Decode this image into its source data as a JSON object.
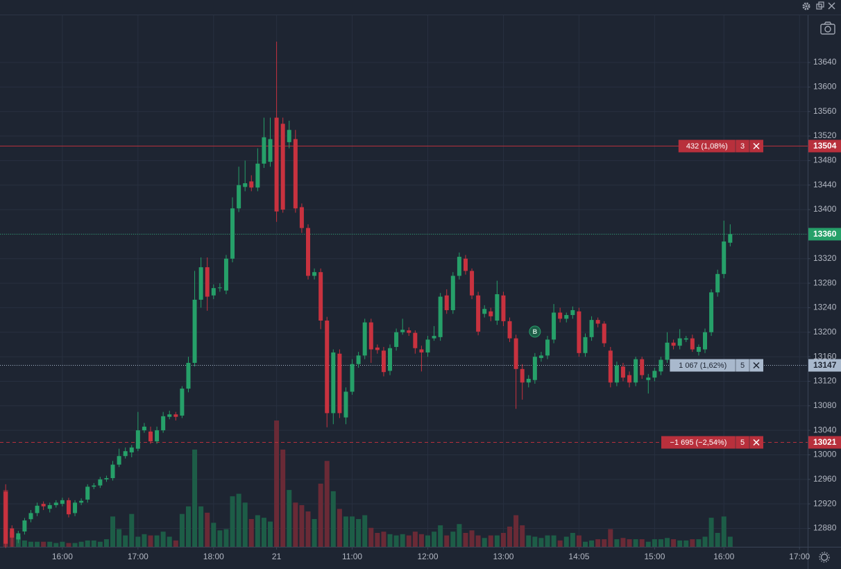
{
  "chart_data": {
    "type": "candlestick",
    "up_color": "#26a069",
    "down_color": "#c8323f",
    "volume_up_color": "#1d5d47",
    "volume_down_color": "#6a2a36",
    "grid": true,
    "xlim": [
      -0.9,
      127.3
    ],
    "xticks": [
      {
        "value": 9,
        "label": "16:00"
      },
      {
        "value": 21,
        "label": "17:00"
      },
      {
        "value": 33,
        "label": "18:00"
      },
      {
        "value": 43,
        "label": "21"
      },
      {
        "value": 55,
        "label": "11:00"
      },
      {
        "value": 67,
        "label": "12:00"
      },
      {
        "value": 79,
        "label": "13:00"
      },
      {
        "value": 91,
        "label": "14:05"
      },
      {
        "value": 103,
        "label": "15:00"
      },
      {
        "value": 114,
        "label": "16:00"
      },
      {
        "value": 126,
        "label": "17:00"
      }
    ],
    "ylim": [
      12850,
      13717
    ],
    "yticks": [
      12880,
      12920,
      12960,
      13000,
      13040,
      13080,
      13120,
      13160,
      13200,
      13240,
      13280,
      13320,
      13360,
      13400,
      13440,
      13480,
      13520,
      13560,
      13600,
      13640
    ],
    "open": [
      12940,
      12880,
      12862,
      12875,
      12895,
      12905,
      12920,
      12912,
      12918,
      12920,
      12926,
      12905,
      12922,
      12927,
      12948,
      12950,
      12960,
      12962,
      12984,
      12998,
      13004,
      13010,
      13040,
      13038,
      13022,
      13040,
      13062,
      13066,
      13064,
      13108,
      13150,
      13253,
      13306,
      13260,
      13272,
      13268,
      13320,
      13402,
      13437,
      13446,
      13436,
      13475,
      13478,
      13550,
      13540,
      13510,
      13515,
      13404,
      13370,
      13292,
      13298,
      13219,
      13068,
      13165,
      13061,
      13103,
      13148,
      13162,
      13216,
      13175,
      13170,
      13137,
      13176,
      13200,
      13203,
      13199,
      13172,
      13167,
      13190,
      13192,
      13260,
      13236,
      13292,
      13320,
      13300,
      13260,
      13230,
      13234,
      13219,
      13260,
      13218,
      13190,
      13140,
      13118,
      13122,
      13158,
      13162,
      13188,
      13232,
      13222,
      13228,
      13234,
      13166,
      13192,
      13220,
      13214,
      13170,
      13118,
      13144,
      13130,
      13118,
      13156,
      13122,
      13126,
      13136,
      13155,
      13183,
      13178,
      13188,
      13190,
      13168,
      13172,
      13200,
      13265,
      13295,
      13346
    ],
    "high": [
      12952,
      12885,
      12876,
      12897,
      12910,
      12922,
      12924,
      12922,
      12926,
      12930,
      12930,
      12926,
      12929,
      12952,
      12954,
      12964,
      12966,
      12990,
      13010,
      13012,
      13016,
      13070,
      13052,
      13046,
      13046,
      13070,
      13072,
      13070,
      13112,
      13160,
      13300,
      13322,
      13322,
      13278,
      13280,
      13326,
      13420,
      13470,
      13480,
      13456,
      13500,
      13550,
      13550,
      13674,
      13550,
      13545,
      13530,
      13410,
      13376,
      13304,
      13304,
      13225,
      13172,
      13172,
      13110,
      13156,
      13168,
      13222,
      13222,
      13180,
      13176,
      13180,
      13206,
      13222,
      13208,
      13203,
      13178,
      13194,
      13210,
      13264,
      13270,
      13298,
      13330,
      13326,
      13304,
      13266,
      13244,
      13240,
      13284,
      13266,
      13224,
      13196,
      13148,
      13130,
      13166,
      13168,
      13194,
      13246,
      13240,
      13232,
      13242,
      13240,
      13198,
      13226,
      13224,
      13218,
      13176,
      13152,
      13150,
      13136,
      13160,
      13160,
      13132,
      13142,
      13160,
      13200,
      13188,
      13205,
      13194,
      13196,
      13180,
      13206,
      13270,
      13302,
      13382,
      13376
    ],
    "low": [
      12848,
      12850,
      12856,
      12870,
      12890,
      12900,
      12910,
      12906,
      12914,
      12916,
      12898,
      12900,
      12918,
      12922,
      12944,
      12946,
      12956,
      12958,
      12980,
      12994,
      12996,
      13006,
      13036,
      13018,
      13018,
      13036,
      13058,
      13056,
      13060,
      13102,
      13144,
      13240,
      13235,
      13254,
      13266,
      13262,
      13314,
      13396,
      13430,
      13430,
      13430,
      13468,
      13470,
      13380,
      13395,
      13500,
      13395,
      13362,
      13286,
      13286,
      13205,
      13045,
      13050,
      13060,
      13050,
      13098,
      13142,
      13156,
      13150,
      13165,
      13128,
      13130,
      13170,
      13196,
      13194,
      13165,
      13136,
      13160,
      13186,
      13186,
      13230,
      13230,
      13286,
      13294,
      13254,
      13195,
      13224,
      13218,
      13212,
      13210,
      13184,
      13075,
      13090,
      13110,
      13116,
      13152,
      13156,
      13182,
      13216,
      13216,
      13222,
      13160,
      13160,
      13186,
      13208,
      13176,
      13110,
      13112,
      13120,
      13110,
      13112,
      13124,
      13100,
      13120,
      13130,
      13150,
      13172,
      13172,
      13184,
      13168,
      13162,
      13166,
      13194,
      13258,
      13288,
      13340
    ],
    "close": [
      12855,
      12865,
      12872,
      12893,
      12905,
      12917,
      12916,
      12918,
      12922,
      12926,
      12903,
      12922,
      12925,
      12948,
      12950,
      12960,
      12962,
      12984,
      12998,
      13006,
      13012,
      13040,
      13046,
      13022,
      13040,
      13063,
      13066,
      13062,
      13108,
      13150,
      13253,
      13306,
      13258,
      13272,
      13273,
      13320,
      13402,
      13440,
      13443,
      13436,
      13475,
      13518,
      13515,
      13397,
      13400,
      13530,
      13402,
      13370,
      13292,
      13298,
      13219,
      13068,
      13167,
      13068,
      13103,
      13148,
      13162,
      13216,
      13172,
      13171,
      13135,
      13174,
      13200,
      13204,
      13199,
      13174,
      13167,
      13188,
      13194,
      13258,
      13236,
      13292,
      13323,
      13300,
      13260,
      13201,
      13238,
      13226,
      13262,
      13218,
      13190,
      13140,
      13118,
      13124,
      13160,
      13162,
      13188,
      13232,
      13222,
      13228,
      13236,
      13166,
      13192,
      13220,
      13214,
      13182,
      13118,
      13146,
      13126,
      13118,
      13156,
      13130,
      13126,
      13137,
      13155,
      13183,
      13178,
      13190,
      13190,
      13172,
      13176,
      13200,
      13265,
      13295,
      13348,
      13360
    ],
    "volume": [
      45,
      12,
      8,
      5,
      4,
      4,
      4,
      4,
      3,
      4,
      3,
      3,
      4,
      5,
      5,
      4,
      6,
      24,
      14,
      9,
      26,
      8,
      10,
      9,
      9,
      12,
      8,
      5,
      26,
      32,
      77,
      32,
      27,
      19,
      13,
      14,
      40,
      42,
      35,
      22,
      25,
      23,
      20,
      100,
      77,
      45,
      35,
      33,
      28,
      22,
      50,
      68,
      44,
      30,
      24,
      24,
      22,
      25,
      15,
      11,
      12,
      10,
      9,
      10,
      9,
      12,
      10,
      9,
      12,
      17,
      9,
      12,
      18,
      11,
      13,
      9,
      7,
      9,
      9,
      11,
      16,
      25,
      17,
      9,
      8,
      7,
      9,
      9,
      5,
      8,
      11,
      9,
      4,
      5,
      6,
      6,
      14,
      6,
      7,
      6,
      6,
      6,
      4,
      6,
      6,
      7,
      6,
      5,
      5,
      6,
      6,
      8,
      23,
      11,
      24,
      8
    ],
    "price_lines": [
      {
        "value": 13504,
        "label": "432 (1,08%)",
        "count": 3,
        "color": "#b8303c",
        "style": "solid"
      },
      {
        "value": 13360,
        "color": "#26a069",
        "style": "dotted"
      },
      {
        "value": 13147,
        "label": "1 067 (1,62%)",
        "count": 5,
        "color": "#a9b9cd",
        "style": "dotted"
      },
      {
        "value": 13021,
        "label": "−1 695 (−2,54%)",
        "count": 5,
        "color": "#b8303c",
        "style": "dashed"
      }
    ],
    "markers": [
      {
        "x": 84,
        "y": 13201,
        "label": "B"
      }
    ]
  }
}
